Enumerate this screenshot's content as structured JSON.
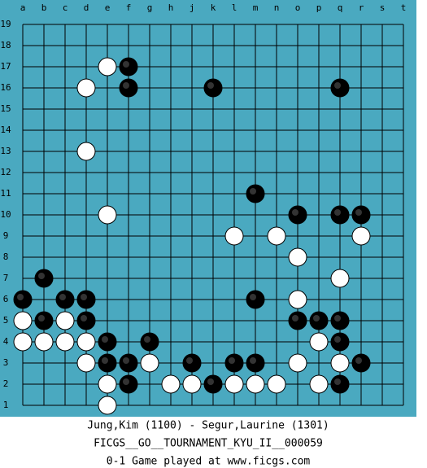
{
  "board": {
    "columns": [
      "a",
      "b",
      "c",
      "d",
      "e",
      "f",
      "g",
      "h",
      "j",
      "k",
      "l",
      "m",
      "n",
      "o",
      "p",
      "q",
      "r",
      "s",
      "t"
    ],
    "rows": [
      19,
      18,
      17,
      16,
      15,
      14,
      13,
      12,
      11,
      10,
      9,
      8,
      7,
      6,
      5,
      4,
      3,
      2,
      1
    ]
  },
  "stones": [
    {
      "col": "e",
      "row": 17,
      "color": "white"
    },
    {
      "col": "f",
      "row": 17,
      "color": "black"
    },
    {
      "col": "d",
      "row": 16,
      "color": "white"
    },
    {
      "col": "f",
      "row": 16,
      "color": "black"
    },
    {
      "col": "k",
      "row": 16,
      "color": "black"
    },
    {
      "col": "q",
      "row": 16,
      "color": "black"
    },
    {
      "col": "d",
      "row": 13,
      "color": "white"
    },
    {
      "col": "m",
      "row": 11,
      "color": "black"
    },
    {
      "col": "e",
      "row": 10,
      "color": "white"
    },
    {
      "col": "o",
      "row": 10,
      "color": "black"
    },
    {
      "col": "q",
      "row": 10,
      "color": "black"
    },
    {
      "col": "r",
      "row": 10,
      "color": "black"
    },
    {
      "col": "l",
      "row": 9,
      "color": "white"
    },
    {
      "col": "n",
      "row": 9,
      "color": "white"
    },
    {
      "col": "r",
      "row": 9,
      "color": "white"
    },
    {
      "col": "o",
      "row": 8,
      "color": "white"
    },
    {
      "col": "b",
      "row": 7,
      "color": "black"
    },
    {
      "col": "q",
      "row": 7,
      "color": "white"
    },
    {
      "col": "a",
      "row": 6,
      "color": "black"
    },
    {
      "col": "c",
      "row": 6,
      "color": "black"
    },
    {
      "col": "d",
      "row": 6,
      "color": "black"
    },
    {
      "col": "m",
      "row": 6,
      "color": "black"
    },
    {
      "col": "o",
      "row": 6,
      "color": "white"
    },
    {
      "col": "a",
      "row": 5,
      "color": "white"
    },
    {
      "col": "b",
      "row": 5,
      "color": "black"
    },
    {
      "col": "c",
      "row": 5,
      "color": "white"
    },
    {
      "col": "d",
      "row": 5,
      "color": "black"
    },
    {
      "col": "o",
      "row": 5,
      "color": "black"
    },
    {
      "col": "p",
      "row": 5,
      "color": "black"
    },
    {
      "col": "q",
      "row": 5,
      "color": "black"
    },
    {
      "col": "a",
      "row": 4,
      "color": "white"
    },
    {
      "col": "b",
      "row": 4,
      "color": "white"
    },
    {
      "col": "c",
      "row": 4,
      "color": "white"
    },
    {
      "col": "d",
      "row": 4,
      "color": "white"
    },
    {
      "col": "e",
      "row": 4,
      "color": "black"
    },
    {
      "col": "g",
      "row": 4,
      "color": "black"
    },
    {
      "col": "p",
      "row": 4,
      "color": "white"
    },
    {
      "col": "q",
      "row": 4,
      "color": "black"
    },
    {
      "col": "d",
      "row": 3,
      "color": "white"
    },
    {
      "col": "e",
      "row": 3,
      "color": "black"
    },
    {
      "col": "f",
      "row": 3,
      "color": "black"
    },
    {
      "col": "g",
      "row": 3,
      "color": "white"
    },
    {
      "col": "j",
      "row": 3,
      "color": "black"
    },
    {
      "col": "l",
      "row": 3,
      "color": "black"
    },
    {
      "col": "m",
      "row": 3,
      "color": "black"
    },
    {
      "col": "o",
      "row": 3,
      "color": "white"
    },
    {
      "col": "q",
      "row": 3,
      "color": "white"
    },
    {
      "col": "r",
      "row": 3,
      "color": "black"
    },
    {
      "col": "e",
      "row": 2,
      "color": "white"
    },
    {
      "col": "f",
      "row": 2,
      "color": "black"
    },
    {
      "col": "h",
      "row": 2,
      "color": "white"
    },
    {
      "col": "j",
      "row": 2,
      "color": "white"
    },
    {
      "col": "k",
      "row": 2,
      "color": "black"
    },
    {
      "col": "l",
      "row": 2,
      "color": "white"
    },
    {
      "col": "m",
      "row": 2,
      "color": "white"
    },
    {
      "col": "n",
      "row": 2,
      "color": "white"
    },
    {
      "col": "p",
      "row": 2,
      "color": "white"
    },
    {
      "col": "q",
      "row": 2,
      "color": "black"
    },
    {
      "col": "e",
      "row": 1,
      "color": "white"
    }
  ],
  "caption": [
    "Jung,Kim (1100) - Segur,Laurine (1301)",
    "FICGS__GO__TOURNAMENT_KYU_II__000059",
    "0-1    Game played at www.ficgs.com"
  ]
}
